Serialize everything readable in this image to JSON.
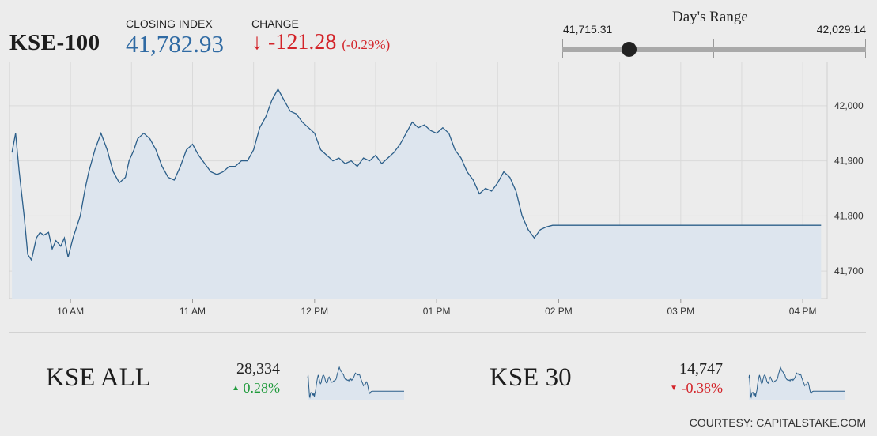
{
  "header": {
    "index_name": "KSE-100",
    "closing_label": "CLOSING INDEX",
    "closing_value": "41,782.93",
    "change_label": "CHANGE",
    "change_arrow": "↓",
    "change_value": "-121.28",
    "change_pct": "(-0.29%)",
    "negative_color": "#d3242a",
    "value_color": "#2f6aa3"
  },
  "days_range": {
    "title": "Day's Range",
    "low": "41,715.31",
    "high": "42,029.14",
    "current_fraction": 0.22
  },
  "chart_data": {
    "type": "area",
    "xlabel": "",
    "ylabel": "",
    "x_ticks": [
      "10 AM",
      "11 AM",
      "12 PM",
      "01 PM",
      "02 PM",
      "03 PM",
      "04 PM"
    ],
    "y_ticks": [
      "41,700",
      "41,800",
      "41,900",
      "42,000"
    ],
    "ylim": [
      41650,
      42080
    ],
    "grid": true,
    "line_color": "#2c5f8a",
    "fill_color": "#dde5ee",
    "series": [
      {
        "x": [
          9.52,
          9.55,
          9.58,
          9.62,
          9.65,
          9.68,
          9.72,
          9.75,
          9.78,
          9.82,
          9.85,
          9.88,
          9.92,
          9.95,
          9.98,
          10.02,
          10.05,
          10.08,
          10.12,
          10.15,
          10.2,
          10.25,
          10.3,
          10.35,
          10.4,
          10.45,
          10.48,
          10.52,
          10.55,
          10.6,
          10.65,
          10.7,
          10.75,
          10.8,
          10.85,
          10.9,
          10.95,
          11.0,
          11.05,
          11.1,
          11.15,
          11.2,
          11.25,
          11.3,
          11.35,
          11.4,
          11.45,
          11.5,
          11.55,
          11.6,
          11.65,
          11.7,
          11.75,
          11.8,
          11.85,
          11.9,
          11.95,
          12.0,
          12.05,
          12.1,
          12.15,
          12.2,
          12.25,
          12.3,
          12.35,
          12.4,
          12.45,
          12.5,
          12.55,
          12.6,
          12.65,
          12.7,
          12.75,
          12.8,
          12.85,
          12.9,
          12.95,
          13.0,
          13.05,
          13.1,
          13.15,
          13.2,
          13.25,
          13.3,
          13.35,
          13.4,
          13.45,
          13.5,
          13.55,
          13.6,
          13.65,
          13.7,
          13.75,
          13.8,
          13.85,
          13.9,
          13.95,
          14.0,
          14.05,
          14.1,
          14.15,
          14.2,
          14.25,
          14.3,
          14.35,
          14.4,
          14.45,
          14.5,
          14.55,
          14.6,
          14.65,
          14.7,
          14.75,
          14.8,
          14.85,
          14.9,
          14.95,
          15.0,
          15.05,
          15.1,
          15.15,
          15.2,
          15.25,
          15.3,
          15.35,
          15.4,
          15.45,
          15.5,
          15.6,
          15.7,
          15.8,
          15.9,
          16.0,
          16.1,
          16.15
        ],
        "values": [
          41915,
          41950,
          41880,
          41800,
          41730,
          41720,
          41760,
          41770,
          41765,
          41770,
          41740,
          41755,
          41745,
          41760,
          41725,
          41760,
          41780,
          41800,
          41850,
          41880,
          41920,
          41950,
          41920,
          41880,
          41860,
          41870,
          41900,
          41920,
          41940,
          41950,
          41940,
          41920,
          41890,
          41870,
          41865,
          41890,
          41920,
          41930,
          41910,
          41895,
          41880,
          41875,
          41880,
          41890,
          41890,
          41900,
          41900,
          41920,
          41960,
          41980,
          42010,
          42030,
          42010,
          41990,
          41985,
          41970,
          41960,
          41950,
          41920,
          41910,
          41900,
          41905,
          41895,
          41900,
          41890,
          41905,
          41900,
          41910,
          41895,
          41905,
          41915,
          41930,
          41950,
          41970,
          41960,
          41965,
          41955,
          41950,
          41960,
          41950,
          41920,
          41905,
          41880,
          41865,
          41840,
          41850,
          41845,
          41860,
          41880,
          41870,
          41845,
          41800,
          41775,
          41760,
          41775,
          41780,
          41783,
          41783,
          41783,
          41783,
          41783,
          41783,
          41783,
          41783,
          41783,
          41783,
          41783,
          41783,
          41783,
          41783,
          41783,
          41783,
          41783,
          41783,
          41783,
          41783,
          41783,
          41783,
          41783,
          41783,
          41783,
          41783,
          41783,
          41783,
          41783,
          41783,
          41783,
          41783,
          41783,
          41783,
          41783,
          41783,
          41783,
          41783,
          41783
        ]
      }
    ]
  },
  "sub_indices": [
    {
      "name": "KSE ALL",
      "value": "28,334",
      "arrow": "▲",
      "change": "0.28%",
      "color": "#1f9a3b"
    },
    {
      "name": "KSE 30",
      "value": "14,747",
      "arrow": "▼",
      "change": "-0.38%",
      "color": "#d3242a"
    }
  ],
  "footer": {
    "courtesy": "COURTESY: CAPITALSTAKE.COM"
  }
}
